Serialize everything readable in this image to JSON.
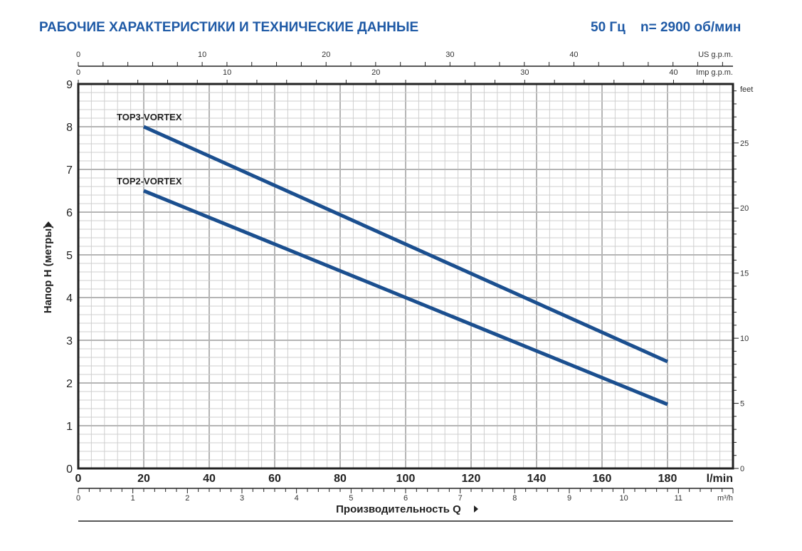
{
  "header": {
    "title": "РАБОЧИЕ ХАРАКТЕРИСТИКИ И ТЕХНИЧЕСКИЕ ДАННЫЕ",
    "frequency": "50 Гц",
    "speed": "n= 2900 об/мин"
  },
  "chart_data": {
    "type": "line",
    "xlabel": "Производительность Q",
    "ylabel": "Напор H (метры)",
    "x_unit": "l/min",
    "xlim": [
      0,
      200
    ],
    "ylim": [
      0,
      9
    ],
    "x_ticks": [
      0,
      20,
      40,
      60,
      80,
      100,
      120,
      140,
      160,
      180
    ],
    "y_ticks": [
      0,
      1,
      2,
      3,
      4,
      5,
      6,
      7,
      8,
      9
    ],
    "secondary_axes": {
      "us_gpm": {
        "label": "US g.p.m.",
        "ticks": [
          0,
          10,
          20,
          30,
          40
        ]
      },
      "imp_gpm": {
        "label": "Imp g.p.m.",
        "ticks": [
          0,
          10,
          20,
          30,
          40
        ]
      },
      "m3h": {
        "label": "m³/h",
        "ticks": [
          0,
          1,
          2,
          3,
          4,
          5,
          6,
          7,
          8,
          9,
          10,
          11
        ]
      },
      "feet": {
        "label": "feet",
        "ticks": [
          0,
          5,
          10,
          15,
          20,
          25
        ]
      }
    },
    "grid": true,
    "series": [
      {
        "name": "TOP3-VORTEX",
        "x": [
          20,
          180
        ],
        "y": [
          8.0,
          2.5
        ]
      },
      {
        "name": "TOP2-VORTEX",
        "x": [
          20,
          180
        ],
        "y": [
          6.5,
          1.5
        ]
      }
    ],
    "color": "#1b4f8f"
  }
}
